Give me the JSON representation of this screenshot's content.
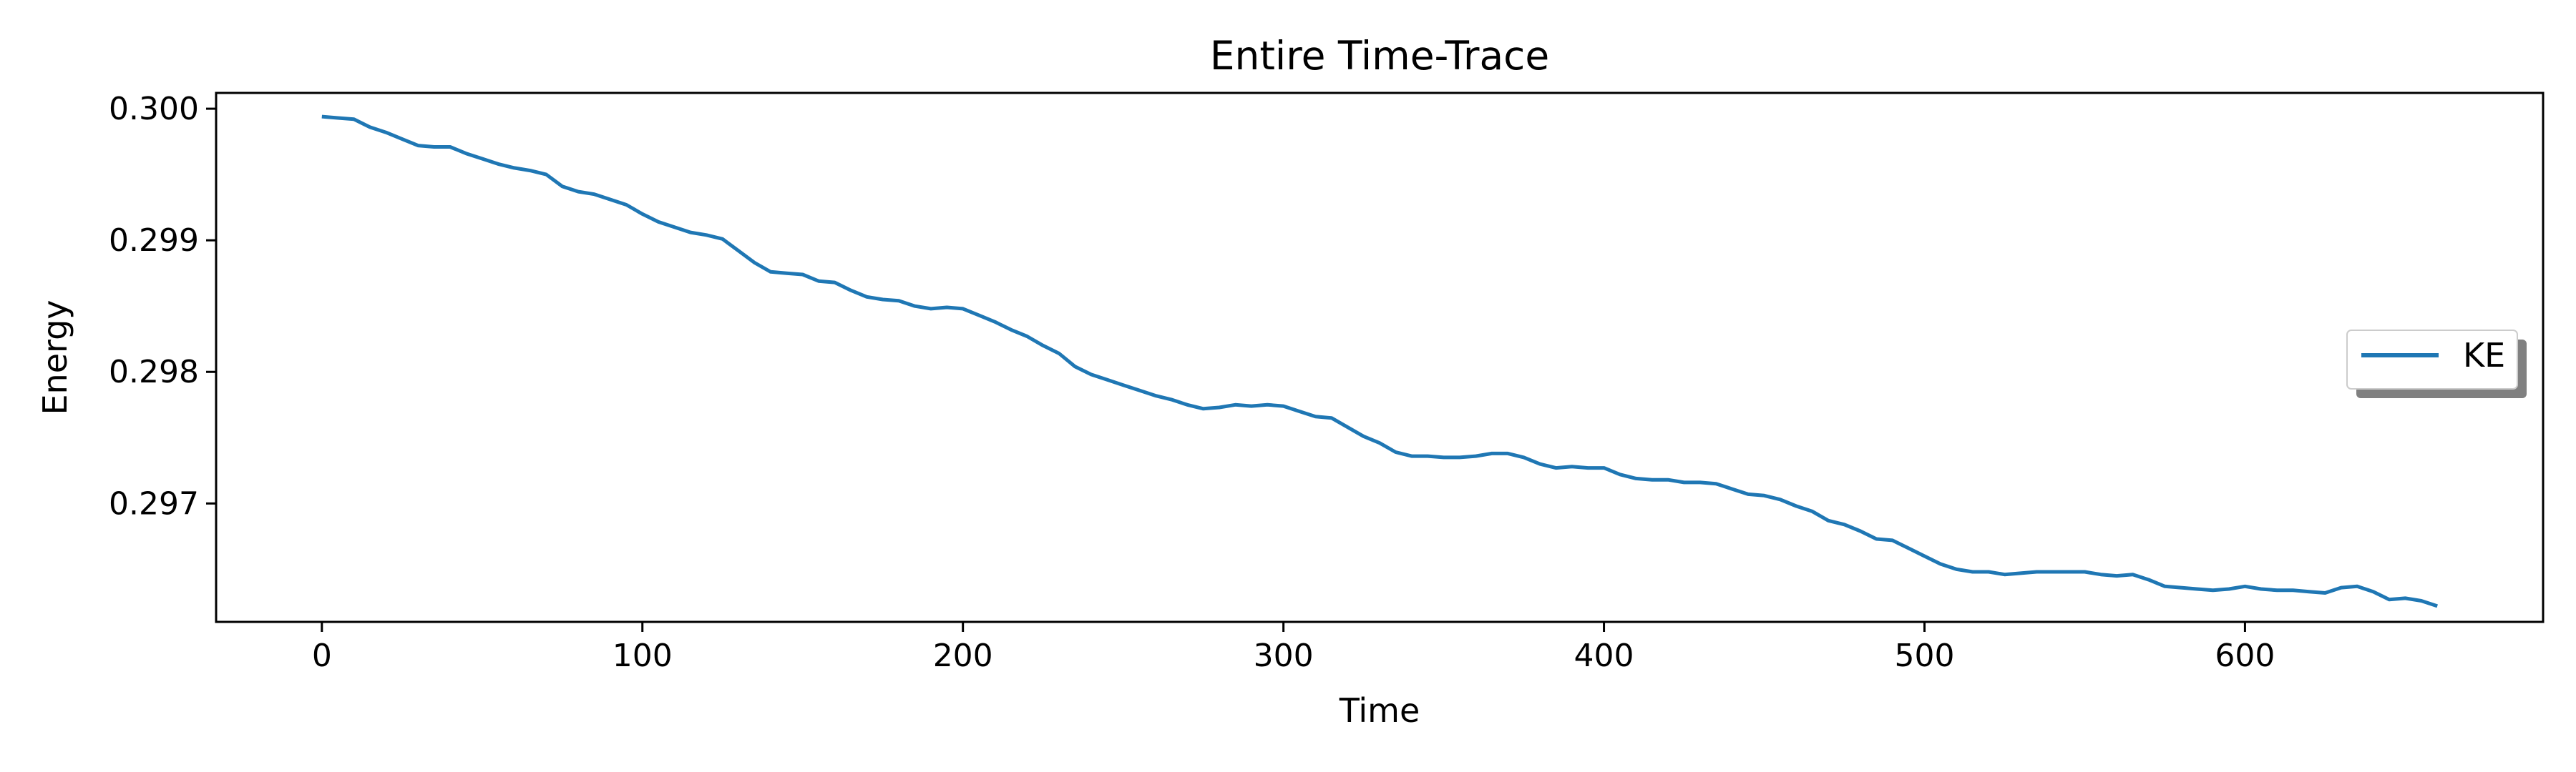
{
  "chart_data": {
    "type": "line",
    "title": "Entire Time-Trace",
    "xlabel": "Time",
    "ylabel": "Energy",
    "xlim": [
      -33,
      693
    ],
    "ylim": [
      0.2961,
      0.30012
    ],
    "xticks": [
      0,
      100,
      200,
      300,
      400,
      500,
      600
    ],
    "yticks": [
      0.297,
      0.298,
      0.299,
      0.3
    ],
    "ytick_labels": [
      "0.297",
      "0.298",
      "0.299",
      "0.300"
    ],
    "legend_position": "center-right",
    "grid": false,
    "series": [
      {
        "name": "KE",
        "color": "#1f77b4",
        "x": [
          0,
          5,
          10,
          15,
          20,
          25,
          30,
          35,
          40,
          45,
          50,
          55,
          60,
          65,
          70,
          75,
          80,
          85,
          90,
          95,
          100,
          105,
          110,
          115,
          120,
          125,
          130,
          135,
          140,
          145,
          150,
          155,
          160,
          165,
          170,
          175,
          180,
          185,
          190,
          195,
          200,
          205,
          210,
          215,
          220,
          225,
          230,
          235,
          240,
          245,
          250,
          255,
          260,
          265,
          270,
          275,
          280,
          285,
          290,
          295,
          300,
          305,
          310,
          315,
          320,
          325,
          330,
          335,
          340,
          345,
          350,
          355,
          360,
          365,
          370,
          375,
          380,
          385,
          390,
          395,
          400,
          405,
          410,
          415,
          420,
          425,
          430,
          435,
          440,
          445,
          450,
          455,
          460,
          465,
          470,
          475,
          480,
          485,
          490,
          495,
          500,
          505,
          510,
          515,
          520,
          525,
          530,
          535,
          540,
          545,
          550,
          555,
          560,
          565,
          570,
          575,
          580,
          585,
          590,
          595,
          600,
          605,
          610,
          615,
          620,
          625,
          630,
          635,
          640,
          645,
          650,
          655,
          660
        ],
        "y": [
          0.29994,
          0.29993,
          0.29992,
          0.29986,
          0.29982,
          0.29977,
          0.29972,
          0.29971,
          0.29971,
          0.29966,
          0.29962,
          0.29958,
          0.29955,
          0.29953,
          0.2995,
          0.29941,
          0.29937,
          0.29935,
          0.29931,
          0.29927,
          0.2992,
          0.29914,
          0.2991,
          0.29906,
          0.29904,
          0.29901,
          0.29892,
          0.29883,
          0.29876,
          0.29875,
          0.29874,
          0.29869,
          0.29868,
          0.29862,
          0.29857,
          0.29855,
          0.29854,
          0.2985,
          0.29848,
          0.29849,
          0.29848,
          0.29843,
          0.29838,
          0.29832,
          0.29827,
          0.2982,
          0.29814,
          0.29804,
          0.29798,
          0.29794,
          0.2979,
          0.29786,
          0.29782,
          0.29779,
          0.29775,
          0.29772,
          0.29773,
          0.29775,
          0.29774,
          0.29775,
          0.29774,
          0.2977,
          0.29766,
          0.29765,
          0.29758,
          0.29751,
          0.29746,
          0.29739,
          0.29736,
          0.29736,
          0.29735,
          0.29735,
          0.29736,
          0.29738,
          0.29738,
          0.29735,
          0.2973,
          0.29727,
          0.29728,
          0.29727,
          0.29727,
          0.29722,
          0.29719,
          0.29718,
          0.29718,
          0.29716,
          0.29716,
          0.29715,
          0.29711,
          0.29707,
          0.29706,
          0.29703,
          0.29698,
          0.29694,
          0.29687,
          0.29684,
          0.29679,
          0.29673,
          0.29672,
          0.29666,
          0.2966,
          0.29654,
          0.2965,
          0.29648,
          0.29648,
          0.29646,
          0.29647,
          0.29648,
          0.29648,
          0.29648,
          0.29648,
          0.29646,
          0.29645,
          0.29646,
          0.29642,
          0.29637,
          0.29636,
          0.29635,
          0.29634,
          0.29635,
          0.29637,
          0.29635,
          0.29634,
          0.29634,
          0.29633,
          0.29632,
          0.29636,
          0.29637,
          0.29633,
          0.29627,
          0.29628,
          0.29626,
          0.29622
        ]
      }
    ]
  }
}
